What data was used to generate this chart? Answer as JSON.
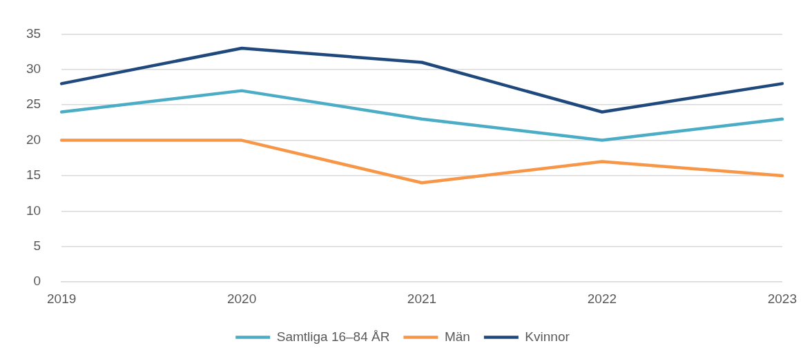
{
  "chart_data": {
    "type": "line",
    "categories": [
      "2019",
      "2020",
      "2021",
      "2022",
      "2023"
    ],
    "series": [
      {
        "name": "Samtliga 16–84 ÅR",
        "color": "#4bacc6",
        "values": [
          24,
          27,
          23,
          20,
          23
        ]
      },
      {
        "name": "Män",
        "color": "#f79646",
        "values": [
          20,
          20,
          14,
          17,
          15
        ]
      },
      {
        "name": "Kvinnor",
        "color": "#1f497d",
        "values": [
          28,
          33,
          31,
          24,
          28
        ]
      }
    ],
    "ylim": [
      0,
      35
    ],
    "yticks": [
      0,
      5,
      10,
      15,
      20,
      25,
      30,
      35
    ],
    "grid": "y",
    "legend": "bottom",
    "marker": "none",
    "line_style": "solid"
  }
}
